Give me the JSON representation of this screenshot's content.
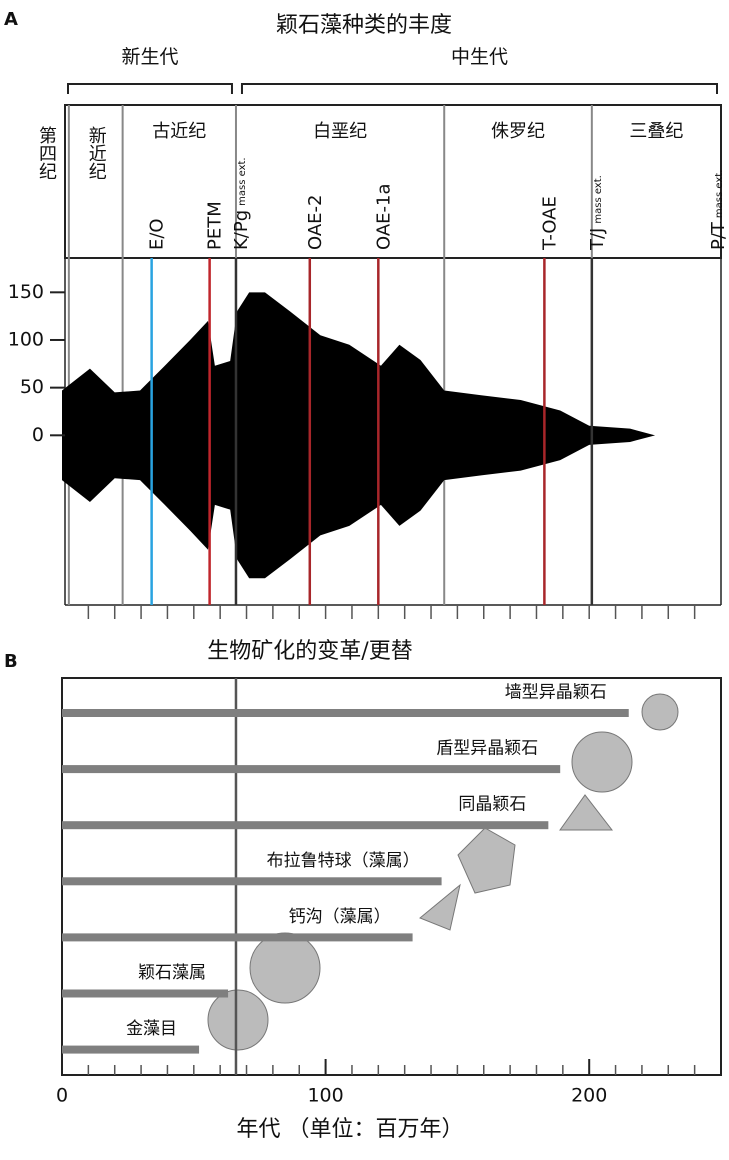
{
  "chart_data": [
    {
      "type": "area",
      "panel": "A",
      "title": "颖石藻种类的丰度",
      "eras": [
        {
          "name": "新生代",
          "start": 0,
          "end": 66
        },
        {
          "name": "中生代",
          "start": 66,
          "end": 250
        }
      ],
      "periods": [
        {
          "name": "第四纪",
          "start": 0,
          "end": 2.6
        },
        {
          "name": "新近纪",
          "start": 2.6,
          "end": 23
        },
        {
          "name": "古近纪",
          "start": 23,
          "end": 66
        },
        {
          "name": "白垩纪",
          "start": 66,
          "end": 145
        },
        {
          "name": "侏罗纪",
          "start": 145,
          "end": 201
        },
        {
          "name": "三叠纪",
          "start": 201,
          "end": 250
        }
      ],
      "events": [
        {
          "label": "E/O",
          "age": 34,
          "color": "#29a3e0"
        },
        {
          "label": "PETM",
          "age": 56,
          "color": "#c0262c"
        },
        {
          "label": "K/Pg",
          "note": "mass ext.",
          "age": 66,
          "color": "#333333"
        },
        {
          "label": "OAE-2",
          "age": 94,
          "color": "#a8262a"
        },
        {
          "label": "OAE-1a",
          "age": 120,
          "color": "#a8262a"
        },
        {
          "label": "T-OAE",
          "age": 183,
          "color": "#a8262a"
        },
        {
          "label": "T/J",
          "note": "mass ext.",
          "age": 201,
          "color": "#333333"
        },
        {
          "label": "P/T",
          "note": "mass ext.",
          "age": 250,
          "color": "#333333"
        }
      ],
      "x": [
        0,
        10.6,
        20,
        29.6,
        39,
        48.6,
        55.4,
        58,
        63.8,
        66.4,
        71,
        77,
        86.5,
        98,
        109,
        121,
        128,
        136,
        145,
        159,
        174,
        189,
        200,
        215.5,
        225
      ],
      "values": [
        47,
        70,
        45,
        47,
        73,
        100,
        120,
        73,
        78,
        130,
        150,
        150,
        130,
        105,
        95,
        73,
        95,
        79,
        47,
        42,
        37,
        26,
        10,
        7,
        0
      ],
      "color": "#000000",
      "xlim": [
        0,
        250
      ],
      "ylim": [
        -178,
        186
      ],
      "yticks": [
        0,
        50,
        100,
        150
      ]
    },
    {
      "type": "bar",
      "panel": "B",
      "title": "生物矿化的变革/更替",
      "xlabel": "年代 （单位：百万年）",
      "categories": [
        "墙型异晶颖石",
        "盾型异晶颖石",
        "同晶颖石",
        "布拉鲁特球（藻属）",
        "钙沟（藻属）",
        "颖石藻属",
        "金藻目"
      ],
      "values": [
        215,
        189,
        184.5,
        144,
        133,
        63,
        52
      ],
      "color": "#7f7f7f",
      "xlim": [
        0,
        250
      ],
      "xticks": [
        0,
        100,
        200
      ],
      "marker_line": 66
    }
  ]
}
